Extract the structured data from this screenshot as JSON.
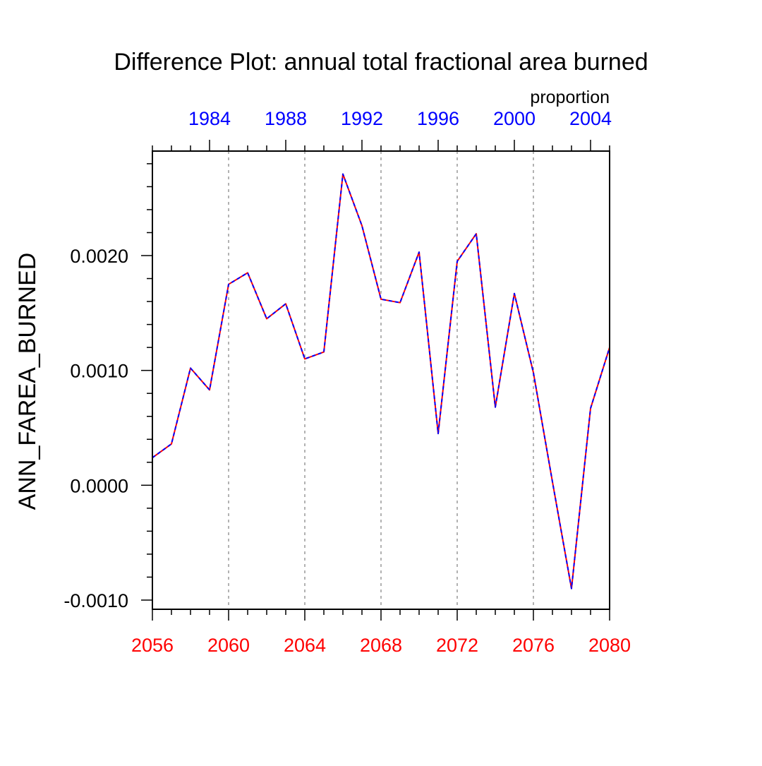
{
  "chart_data": {
    "type": "line",
    "title": "Difference Plot: annual total fractional area burned",
    "units": "proportion",
    "ylabel": "ANN_FAREA_BURNED",
    "xlabel": "",
    "ylim": [
      -0.00108,
      0.00291
    ],
    "grid": "vertical dotted at major bottom ticks",
    "x_bottom": {
      "range": [
        2056,
        2080
      ],
      "ticks": [
        2056,
        2060,
        2064,
        2068,
        2072,
        2076,
        2080
      ],
      "tick_labels": [
        "2056",
        "2060",
        "2064",
        "2068",
        "2072",
        "2076",
        "2080"
      ],
      "color": "#ff0000"
    },
    "x_top": {
      "range": [
        1981,
        2005
      ],
      "ticks": [
        1984,
        1988,
        1992,
        1996,
        2000,
        2004
      ],
      "tick_labels": [
        "1984",
        "1988",
        "1992",
        "1996",
        "2000",
        "2004"
      ],
      "color": "#0000ff"
    },
    "y_ticks": [
      -0.001,
      0.0,
      0.001,
      0.002
    ],
    "y_tick_labels": [
      "-0.0010",
      "0.0000",
      "0.0010",
      "0.0020"
    ],
    "series": [
      {
        "color": "#ff0000",
        "dash": "solid",
        "x": [
          2056,
          2057,
          2058,
          2059,
          2060,
          2061,
          2062,
          2063,
          2064,
          2065,
          2066,
          2067,
          2068,
          2069,
          2070,
          2071,
          2072,
          2073,
          2074,
          2075,
          2076,
          2077,
          2078,
          2079,
          2080
        ],
        "values": [
          0.00024,
          0.00036,
          0.00102,
          0.00083,
          0.00175,
          0.00185,
          0.00145,
          0.00158,
          0.0011,
          0.00116,
          0.00271,
          0.00226,
          0.00162,
          0.00159,
          0.00203,
          0.00045,
          0.00195,
          0.00219,
          0.00068,
          0.00167,
          0.00098,
          3e-05,
          -0.0009,
          0.00067,
          0.0012
        ]
      },
      {
        "color": "#0000ff",
        "dash": "dashed",
        "x": [
          2056,
          2057,
          2058,
          2059,
          2060,
          2061,
          2062,
          2063,
          2064,
          2065,
          2066,
          2067,
          2068,
          2069,
          2070,
          2071,
          2072,
          2073,
          2074,
          2075,
          2076,
          2077,
          2078,
          2079,
          2080
        ],
        "values": [
          0.00024,
          0.00036,
          0.00102,
          0.00083,
          0.00175,
          0.00185,
          0.00145,
          0.00158,
          0.0011,
          0.00116,
          0.00271,
          0.00226,
          0.00162,
          0.00159,
          0.00203,
          0.00045,
          0.00195,
          0.00219,
          0.00068,
          0.00167,
          0.00098,
          3e-05,
          -0.0009,
          0.00067,
          0.0012
        ]
      }
    ]
  }
}
